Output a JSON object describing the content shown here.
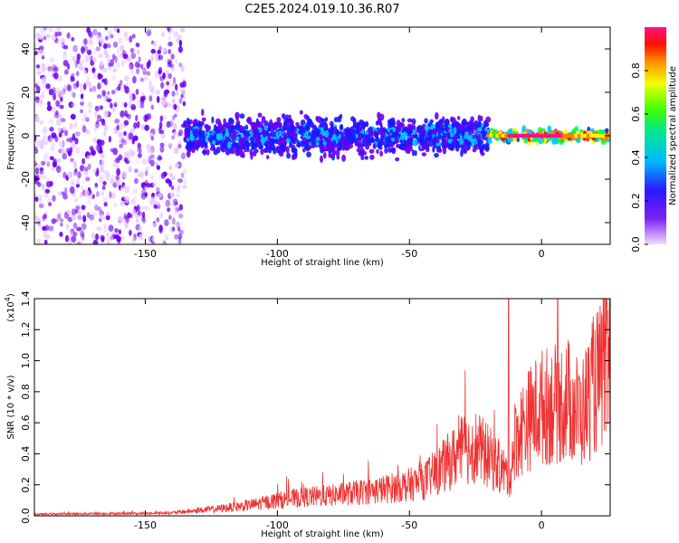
{
  "title": "C2E5.2024.019.10.36.R07",
  "chart_data": [
    {
      "type": "heatmap",
      "name": "spectrogram",
      "xlabel": "Height of straight line (km)",
      "ylabel": "Frequency (Hz)",
      "xlim": [
        -192,
        26
      ],
      "ylim": [
        -50,
        50
      ],
      "xticks": [
        -150,
        -100,
        -50,
        0
      ],
      "yticks": [
        -40,
        -20,
        0,
        20,
        40
      ],
      "grid": false,
      "colorbar": {
        "label": "Normalized spectral amplitude",
        "range": [
          0.0,
          1.0
        ],
        "ticks": [
          "0.0",
          "0.2",
          "0.4",
          "0.6",
          "0.8"
        ],
        "colors": [
          "#e8c8ff",
          "#6a00f0",
          "#1a1aff",
          "#00c8ff",
          "#00ff40",
          "#ffff00",
          "#ff8000",
          "#ff0000",
          "#ff1080"
        ]
      },
      "description_segments": [
        {
          "x_range": [
            -192,
            -135
          ],
          "freq_spread": [
            -50,
            50
          ],
          "amplitude": 0.1
        },
        {
          "x_range": [
            -135,
            -20
          ],
          "freq_spread": [
            -12,
            12
          ],
          "amplitude": 0.35
        },
        {
          "x_range": [
            -20,
            26
          ],
          "freq_spread": [
            -4,
            4
          ],
          "amplitude": 0.9
        }
      ]
    },
    {
      "type": "line",
      "name": "snr",
      "xlabel": "Height of straight line (km)",
      "ylabel": "SNR (10 * v/v)",
      "y_multiplier": "(x10",
      "y_multiplier_exp": "4",
      "y_multiplier_close": ")",
      "xlim": [
        -192,
        26
      ],
      "ylim": [
        0.0,
        1.4
      ],
      "xticks": [
        -150,
        -100,
        -50,
        0
      ],
      "yticks": [
        "0.0",
        "0.2",
        "0.4",
        "0.6",
        "0.8",
        "1.0",
        "1.2",
        "1.4"
      ],
      "grid": false,
      "color": "#ee3333",
      "x": [
        -192,
        -170,
        -150,
        -140,
        -133,
        -120,
        -110,
        -100,
        -90,
        -80,
        -70,
        -60,
        -50,
        -45,
        -40,
        -35,
        -30,
        -25,
        -20,
        -15,
        -12,
        -10,
        -5,
        0,
        5,
        10,
        15,
        20,
        26
      ],
      "y": [
        0.01,
        0.015,
        0.015,
        0.02,
        0.03,
        0.05,
        0.07,
        0.1,
        0.12,
        0.13,
        0.15,
        0.17,
        0.2,
        0.22,
        0.28,
        0.35,
        0.42,
        0.45,
        0.38,
        0.3,
        0.25,
        0.5,
        0.62,
        0.7,
        0.72,
        0.75,
        0.65,
        0.85,
        0.95
      ]
    }
  ]
}
